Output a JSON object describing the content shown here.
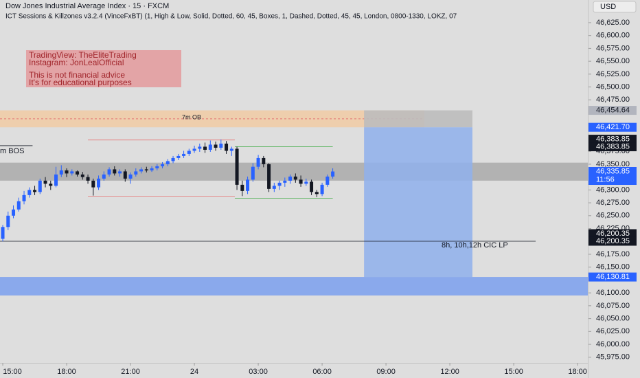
{
  "chart_data": {
    "type": "candlestick",
    "title": "Dow Jones Industrial Average Index · 15 · FXCM",
    "indicator": "ICT Sessions & Killzones v3.2.4 (VinceFxBT) (1, High & Low, Solid, Dotted, 60, 45, Boxes, 1, Dashed, Dotted, 45, 45, London, 0800-1330, LOKZ, 07",
    "currency": "USD",
    "up_color": "#2962ff",
    "down_color": "#131722",
    "grid": false,
    "x": [
      15,
      15.25,
      15.5,
      15.75,
      16,
      16.25,
      16.5,
      16.75,
      17,
      17.25,
      17.5,
      17.75,
      18,
      18.25,
      18.5,
      18.75,
      19,
      19.25,
      19.5,
      19.75,
      20,
      20.25,
      20.5,
      20.75,
      21,
      21.25,
      21.5,
      21.75,
      22,
      22.25,
      22.5,
      22.75,
      23,
      23.25,
      23.5,
      23.75,
      24,
      24.25,
      24.5,
      24.75,
      25,
      25.25,
      25.5,
      25.75,
      26,
      26.25,
      26.5,
      26.75,
      27,
      27.25,
      27.5,
      27.75,
      28,
      28.25,
      28.5,
      28.75,
      29,
      29.25,
      29.5,
      29.75,
      30,
      30.25,
      30.5
    ],
    "open": [
      46205,
      46228,
      46250,
      46262,
      46278,
      46290,
      46300,
      46296,
      46318,
      46312,
      46308,
      46330,
      46338,
      46332,
      46336,
      46330,
      46325,
      46318,
      46305,
      46322,
      46330,
      46340,
      46332,
      46336,
      46322,
      46330,
      46336,
      46340,
      46338,
      46342,
      46346,
      46350,
      46356,
      46362,
      46366,
      46370,
      46376,
      46380,
      46384,
      46378,
      46388,
      46382,
      46390,
      46376,
      46380,
      46310,
      46298,
      46320,
      46345,
      46362,
      46350,
      46302,
      46308,
      46314,
      46318,
      46326,
      46320,
      46312,
      46316,
      46296,
      46292,
      46310,
      46326
    ],
    "high": [
      46232,
      46258,
      46270,
      46285,
      46298,
      46305,
      46308,
      46322,
      46325,
      46318,
      46345,
      46348,
      46342,
      46340,
      46338,
      46335,
      46330,
      46322,
      46328,
      46336,
      46344,
      46346,
      46340,
      46340,
      46334,
      46342,
      46344,
      46345,
      46346,
      46350,
      46354,
      46360,
      46366,
      46370,
      46376,
      46380,
      46386,
      46390,
      46392,
      46396,
      46394,
      46398,
      46395,
      46384,
      46384,
      46318,
      46326,
      46352,
      46368,
      46366,
      46352,
      46314,
      46318,
      46324,
      46330,
      46332,
      46328,
      46322,
      46320,
      46300,
      46314,
      46330,
      46342
    ],
    "low": [
      46200,
      46222,
      46245,
      46258,
      46272,
      46285,
      46290,
      46292,
      46305,
      46300,
      46305,
      46325,
      46325,
      46328,
      46326,
      46320,
      46312,
      46289,
      46300,
      46318,
      46326,
      46328,
      46326,
      46316,
      46312,
      46326,
      46332,
      46334,
      46335,
      46338,
      46342,
      46346,
      46352,
      46358,
      46362,
      46366,
      46372,
      46374,
      46372,
      46374,
      46376,
      46378,
      46370,
      46366,
      46300,
      46288,
      46292,
      46316,
      46340,
      46344,
      46296,
      46296,
      46300,
      46306,
      46312,
      46314,
      46306,
      46308,
      46290,
      46286,
      46288,
      46306,
      46322
    ],
    "close": [
      46228,
      46250,
      46262,
      46278,
      46290,
      46300,
      46296,
      46318,
      46312,
      46308,
      46330,
      46338,
      46332,
      46336,
      46330,
      46325,
      46318,
      46305,
      46322,
      46330,
      46340,
      46332,
      46336,
      46322,
      46330,
      46336,
      46340,
      46338,
      46342,
      46346,
      46350,
      46356,
      46362,
      46366,
      46370,
      46376,
      46380,
      46384,
      46378,
      46388,
      46382,
      46390,
      46376,
      46380,
      46310,
      46298,
      46320,
      46345,
      46362,
      46350,
      46302,
      46308,
      46314,
      46318,
      46326,
      46320,
      46312,
      46316,
      46296,
      46292,
      46310,
      46326,
      46335.85
    ],
    "xlim": [
      14.87,
      42.48
    ],
    "xticks": [
      {
        "value": 15,
        "label": "15:00"
      },
      {
        "value": 18,
        "label": "18:00"
      },
      {
        "value": 21,
        "label": "21:00"
      },
      24,
      {
        "value": 27,
        "label": "03:00"
      },
      {
        "value": 30,
        "label": "06:00"
      },
      {
        "value": 33,
        "label": "09:00"
      },
      {
        "value": 36,
        "label": "12:00"
      },
      {
        "value": 39,
        "label": "15:00"
      },
      {
        "value": 42,
        "label": "18:00"
      }
    ],
    "ylim": [
      45964,
      46669
    ],
    "yticks": [
      {
        "value": 46625,
        "label": "46,625.00"
      },
      {
        "value": 46600,
        "label": "46,600.00"
      },
      {
        "value": 46575,
        "label": "46,575.00"
      },
      {
        "value": 46550,
        "label": "46,550.00"
      },
      {
        "value": 46525,
        "label": "46,525.00"
      },
      {
        "value": 46500,
        "label": "46,500.00"
      },
      {
        "value": 46475,
        "label": "46,475.00"
      },
      {
        "value": 46400,
        "label": "46,400.00"
      },
      {
        "value": 46375,
        "label": "46,375.00"
      },
      {
        "value": 46350,
        "label": "46,350.00"
      },
      {
        "value": 46300,
        "label": "46,300.00"
      },
      {
        "value": 46275,
        "label": "46,275.00"
      },
      {
        "value": 46250,
        "label": "46,250.00"
      },
      {
        "value": 46225,
        "label": "46,225.00"
      },
      {
        "value": 46175,
        "label": "46,175.00"
      },
      {
        "value": 46150,
        "label": "46,150.00"
      },
      {
        "value": 46100,
        "label": "46,100.00"
      },
      {
        "value": 46075,
        "label": "46,075.00"
      },
      {
        "value": 46050,
        "label": "46,050.00"
      },
      {
        "value": 46025,
        "label": "46,025.00"
      },
      {
        "value": 46000,
        "label": "46,000.00"
      },
      {
        "value": 45975,
        "label": "45,975.00"
      }
    ],
    "price_labels": [
      {
        "value": 46454.64,
        "label": "46,454.64",
        "color": "#b2b5be",
        "text_color": "#131722"
      },
      {
        "value": 46421.7,
        "label": "46,421.70",
        "color": "#2962ff",
        "text_color": "#ffffff"
      },
      {
        "value": 46383.85,
        "label": "46,383.85",
        "color": "#131722",
        "text_color": "#ffffff"
      },
      {
        "value": 46383.85,
        "label": "46,383.85",
        "color": "#131722",
        "text_color": "#ffffff"
      },
      {
        "value": 46335.85,
        "label": "46,335.85",
        "color": "#2962ff",
        "text_color": "#ffffff"
      },
      {
        "value": 46200.35,
        "label": "46,200.35",
        "color": "#131722",
        "text_color": "#ffffff"
      },
      {
        "value": 46200.35,
        "label": "46,200.35",
        "color": "#131722",
        "text_color": "#ffffff"
      },
      {
        "value": 46130.81,
        "label": "46,130.81",
        "color": "#2962ff",
        "text_color": "#ffffff"
      }
    ],
    "countdown": "11:56",
    "zones": [
      {
        "label": "7m OB",
        "top": 46454.64,
        "bottom": 46421.7,
        "x_end": 34.8,
        "color": "#f3c89c",
        "mid_line": "#e57373"
      },
      {
        "top": 46353,
        "bottom": 46318,
        "x_end": 42.48,
        "color": "#a3a3a3"
      },
      {
        "top": 46130.81,
        "bottom": 46095,
        "x_end": 42.48,
        "color": "#6d97f0"
      }
    ],
    "position": {
      "stop": 46454.64,
      "entry": 46421.7,
      "target": 46130.81,
      "x_start": 31.97,
      "x_end": 37.06,
      "stop_color": "#bdbdbd",
      "target_color": "#8fb0ec"
    },
    "levels": [
      {
        "label": "m BOS",
        "price": 46386,
        "x_start": 14.87,
        "x_end": 16.4,
        "color": "#131722"
      },
      {
        "label": "8h, 10h,12h CIC LP",
        "price": 46200.35,
        "x_start": 14.87,
        "x_end": 40.03,
        "color": "#131722"
      },
      {
        "price": 46397,
        "x_start": 19.0,
        "x_end": 25.9,
        "color": "#e57373"
      },
      {
        "price": 46288,
        "x_start": 19.0,
        "x_end": 25.9,
        "color": "#e57373"
      },
      {
        "price": 46383.85,
        "x_start": 25.9,
        "x_end": 30.5,
        "color": "#4caf50"
      },
      {
        "price": 46284,
        "x_start": 25.9,
        "x_end": 30.5,
        "color": "#4caf50"
      }
    ],
    "note": [
      "TradingView: TheEliteTrading",
      "Instagram: JonLealOfficial",
      "This is not financial advice",
      "It's for educational purposes"
    ]
  }
}
